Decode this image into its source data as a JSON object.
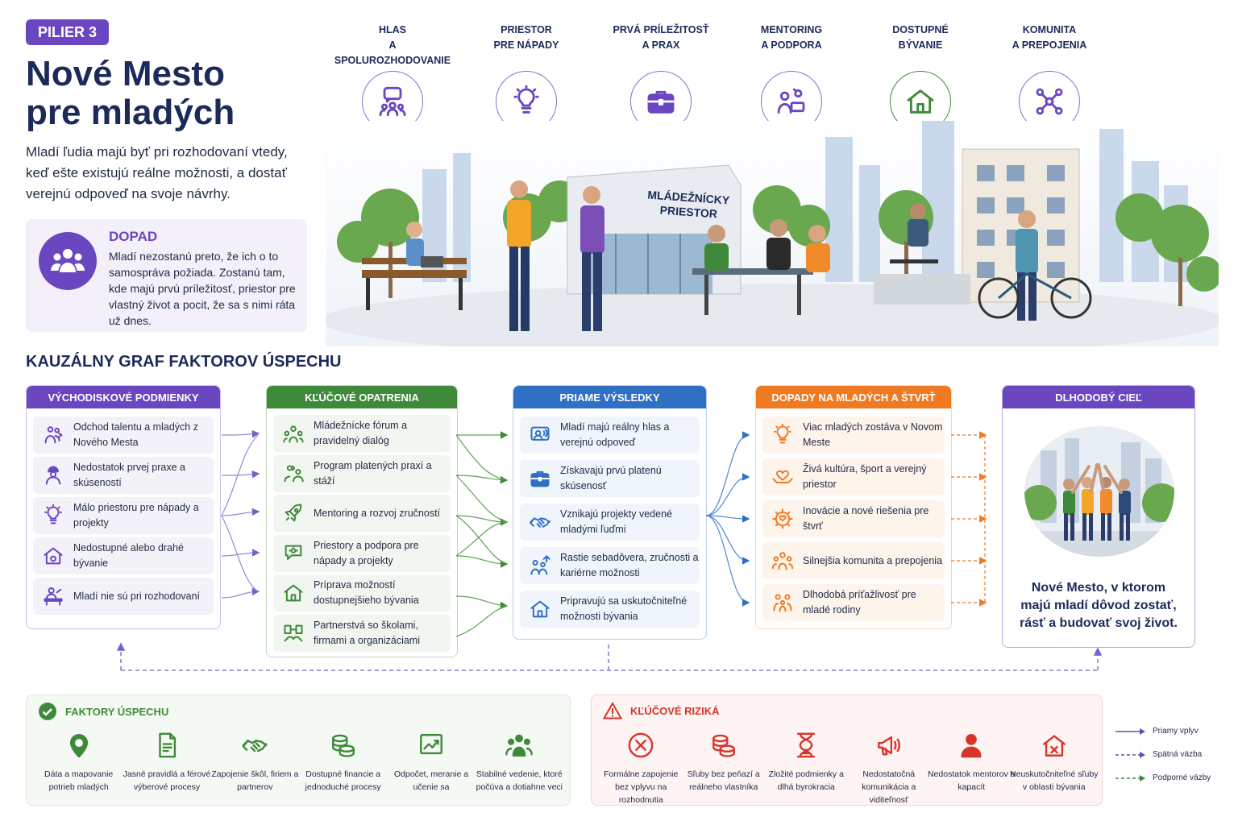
{
  "header": {
    "pill": "PILIER 3",
    "title_line1": "Nové Mesto",
    "title_line2": "pre mladých",
    "lead": "Mladí ľudia majú byť pri rozhodovaní vtedy, keď ešte existujú reálne možnosti, a dostať verejnú odpoveď na svoje návrhy."
  },
  "impact": {
    "title": "DOPAD",
    "text": "Mladí nezostanú preto, že ich o to samospráva požiada. Zostanú tam, kde majú prvú príležitosť, priestor pre vlastný život a pocit, že sa s nimi ráta už dnes."
  },
  "pillars": [
    {
      "label": "HLAS\nA SPOLUROZHODOVANIE",
      "icon": "chat-people-icon"
    },
    {
      "label": "PRIESTOR\nPRE NÁPADY",
      "icon": "lightbulb-icon"
    },
    {
      "label": "PRVÁ PRÍLEŽITOSŤ\nA PRAX",
      "icon": "briefcase-icon"
    },
    {
      "label": "MENTORING\nA PODPORA",
      "icon": "mentor-icon"
    },
    {
      "label": "DOSTUPNÉ\nBÝVANIE",
      "icon": "house-icon"
    },
    {
      "label": "KOMUNITA\nA PREPOJENIA",
      "icon": "network-icon"
    }
  ],
  "scene": {
    "building_sign_line1": "MLÁDEŽNÍCKY",
    "building_sign_line2": "PRIESTOR"
  },
  "graph_title": "KAUZÁLNY GRAF FAKTOROV ÚSPECHU",
  "columns": [
    {
      "title": "Východiskové podmienky",
      "color": "#6b46c1",
      "light": "#f4f2f9",
      "items": [
        {
          "text": "Odchod talentu a mladých z Nového Mesta",
          "icon": "people-leaving-icon"
        },
        {
          "text": "Nedostatok prvej praxe a skúseností",
          "icon": "worker-icon"
        },
        {
          "text": "Málo priestoru pre nápady a projekty",
          "icon": "lightbulb-icon"
        },
        {
          "text": "Nedostupné alebo drahé bývanie",
          "icon": "house-coin-icon"
        },
        {
          "text": "Mladí nie sú pri rozhodovaní",
          "icon": "person-desk-icon"
        }
      ]
    },
    {
      "title": "Kľúčové opatrenia",
      "color": "#3f8a3a",
      "light": "#f2f6f0",
      "items": [
        {
          "text": "Mládežnícke fórum a pravidelný dialóg",
          "icon": "forum-icon"
        },
        {
          "text": "Program platených praxí a stáží",
          "icon": "internship-icon"
        },
        {
          "text": "Mentoring a rozvoj zručností",
          "icon": "rocket-icon"
        },
        {
          "text": "Priestory a podpora pre nápady a projekty",
          "icon": "idea-chat-icon"
        },
        {
          "text": "Príprava možností dostupnejšieho bývania",
          "icon": "house-icon"
        },
        {
          "text": "Partnerstvá so školami, firmami a organizáciami",
          "icon": "partnership-icon"
        }
      ]
    },
    {
      "title": "Priame výsledky",
      "color": "#2f6fc4",
      "light": "#f0f5fb",
      "items": [
        {
          "text": "Mladí majú reálny hlas a verejnú odpoveď",
          "icon": "voice-icon"
        },
        {
          "text": "Získavajú prvú platenú skúsenosť",
          "icon": "briefcase-icon"
        },
        {
          "text": "Vznikajú projekty vedené mladými ľuďmi",
          "icon": "handshake-icon"
        },
        {
          "text": "Rastie sebadôvera, zručnosti a kariérne možnosti",
          "icon": "growth-people-icon"
        },
        {
          "text": "Pripravujú sa uskutočniteľné možnosti bývania",
          "icon": "house-icon"
        }
      ]
    },
    {
      "title": "Dopady na mladých a štvrť",
      "color": "#f07a22",
      "light": "#fdf4ec",
      "items": [
        {
          "text": "Viac mladých zostáva v Novom Meste",
          "icon": "lightbulb-icon"
        },
        {
          "text": "Živá kultúra, šport a verejný priestor",
          "icon": "heart-hands-icon"
        },
        {
          "text": "Inovácie a nové riešenia pre štvrť",
          "icon": "gear-heart-icon"
        },
        {
          "text": "Silnejšia komunita a prepojenia",
          "icon": "community-icon"
        },
        {
          "text": "Dlhodobá príťažlivosť pre mladé rodiny",
          "icon": "family-icon"
        }
      ]
    }
  ],
  "goal": {
    "title": "DLHODOBÝ CIEĽ",
    "text_line1": "Nové Mesto, v ktorom",
    "text_line2": "majú mladí dôvod zostať,",
    "text_line3": "rásť a budovať svoj život."
  },
  "success": {
    "title": "FAKTORY ÚSPECHU",
    "color": "#3f8a3a",
    "items": [
      {
        "text": "Dáta a mapovanie potrieb mladých",
        "icon": "location-pin-icon"
      },
      {
        "text": "Jasné pravidlá a férové výberové procesy",
        "icon": "document-icon"
      },
      {
        "text": "Zapojenie škôl, firiem a partnerov",
        "icon": "handshake-icon"
      },
      {
        "text": "Dostupné financie a jednoduché procesy",
        "icon": "coins-icon"
      },
      {
        "text": "Odpočet, meranie a učenie sa",
        "icon": "chart-icon"
      },
      {
        "text": "Stabilné vedenie, ktoré počúva a dotiahne veci",
        "icon": "team-icon"
      }
    ]
  },
  "risks": {
    "title": "KĽÚČOVÉ RIZIKÁ",
    "color": "#d9342b",
    "items": [
      {
        "text": "Formálne zapojenie bez vplyvu na rozhodnutia",
        "icon": "cross-circle-icon"
      },
      {
        "text": "Sľuby bez peňazí a reálneho vlastníka",
        "icon": "coins-icon"
      },
      {
        "text": "Zložité podmienky a dlhá byrokracia",
        "icon": "hourglass-icon"
      },
      {
        "text": "Nedostatočná komunikácia a viditeľnosť",
        "icon": "megaphone-icon"
      },
      {
        "text": "Nedostatok mentorov a kapacít",
        "icon": "person-icon"
      },
      {
        "text": "Neuskutočniteľné sľuby v oblasti bývania",
        "icon": "house-cross-icon"
      }
    ]
  },
  "legend": [
    {
      "label": "Priamy vplyv",
      "color": "#6b46c1"
    },
    {
      "label": "Spätná väzba",
      "color": "#6b46c1"
    },
    {
      "label": "Podporné väzby",
      "color": "#3f8a3a"
    }
  ]
}
